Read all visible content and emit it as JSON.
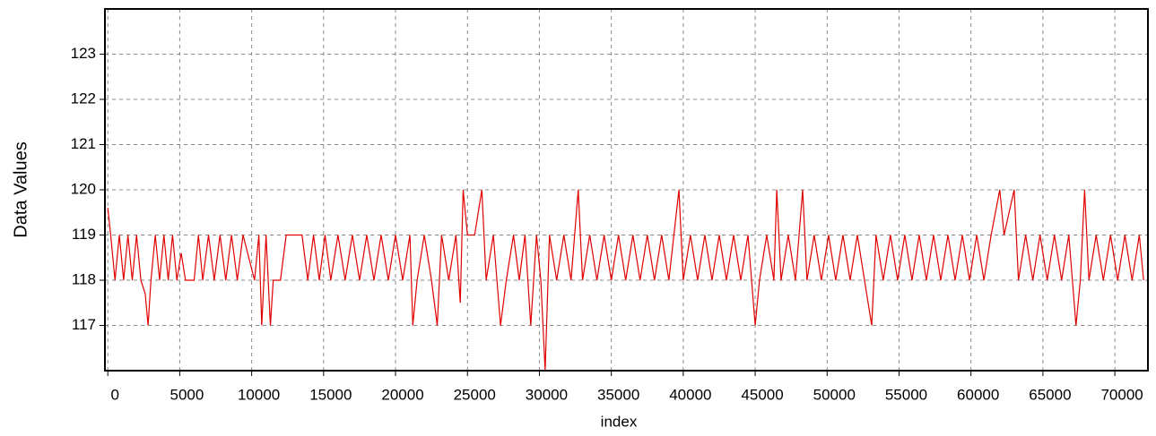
{
  "chart_data": {
    "type": "line",
    "xlabel": "index",
    "ylabel": "Data Values",
    "xlim": [
      -200,
      72300
    ],
    "ylim": [
      116,
      124
    ],
    "xticks": [
      0,
      5000,
      10000,
      15000,
      20000,
      25000,
      30000,
      35000,
      40000,
      45000,
      50000,
      55000,
      60000,
      65000,
      70000
    ],
    "yticks": [
      117,
      118,
      119,
      120,
      121,
      122,
      123
    ],
    "grid": true,
    "series": [
      {
        "color": "#e00000",
        "x": [
          0,
          200,
          500,
          800,
          1100,
          1400,
          1700,
          2000,
          2300,
          2600,
          2800,
          3000,
          3300,
          3600,
          3900,
          4200,
          4500,
          4800,
          5100,
          5400,
          6000,
          6300,
          6600,
          7000,
          7400,
          7800,
          8200,
          8600,
          9000,
          9400,
          9800,
          10200,
          10500,
          10700,
          11000,
          11300,
          11500,
          12000,
          12400,
          13500,
          13900,
          14300,
          14700,
          15100,
          15500,
          16000,
          16500,
          17000,
          17500,
          18000,
          18500,
          19000,
          19500,
          20000,
          20500,
          21000,
          21200,
          21500,
          22000,
          22500,
          22900,
          23200,
          23700,
          24200,
          24500,
          24700,
          25000,
          25500,
          26000,
          26300,
          26800,
          27300,
          27700,
          28200,
          28600,
          29000,
          29400,
          29800,
          30100,
          30400,
          30700,
          31200,
          31700,
          32200,
          32700,
          33000,
          33500,
          34000,
          34500,
          35000,
          35500,
          36000,
          36500,
          37000,
          37500,
          38000,
          38500,
          39000,
          39700,
          40000,
          40500,
          41000,
          41500,
          42000,
          42500,
          43000,
          43500,
          44000,
          44500,
          45000,
          45300,
          45800,
          46300,
          46500,
          46800,
          47300,
          47800,
          48300,
          48600,
          49100,
          49600,
          50100,
          50600,
          51100,
          51600,
          52100,
          52600,
          53100,
          53400,
          53900,
          54400,
          54900,
          55400,
          55900,
          56400,
          56900,
          57400,
          57900,
          58400,
          58900,
          59400,
          59900,
          60400,
          60900,
          61400,
          62000,
          62300,
          63000,
          63300,
          63800,
          64300,
          64800,
          65300,
          65800,
          66300,
          66800,
          67300,
          67600,
          67900,
          68200,
          68700,
          69200,
          69700,
          70200,
          70700,
          71200,
          71700,
          72000
        ],
        "values": [
          119.6,
          119,
          118,
          119,
          118,
          119,
          118,
          119,
          118,
          117.7,
          117,
          118,
          119,
          118,
          119,
          118,
          119,
          118,
          118.6,
          118,
          118,
          119,
          118,
          119,
          118,
          119,
          118,
          119,
          118,
          119,
          118.5,
          118,
          119,
          117,
          119,
          117,
          118,
          118,
          119,
          119,
          118,
          119,
          118,
          119,
          118,
          119,
          118,
          119,
          118,
          119,
          118,
          119,
          118,
          119,
          118,
          119,
          117,
          118,
          119,
          118,
          117,
          119,
          118,
          119,
          117.5,
          120,
          119,
          119,
          120,
          118,
          119,
          117,
          118,
          119,
          118,
          119,
          117,
          119,
          118,
          116,
          119,
          118,
          119,
          118,
          120,
          118,
          119,
          118,
          119,
          118,
          119,
          118,
          119,
          118,
          119,
          118,
          119,
          118,
          120,
          118,
          119,
          118,
          119,
          118,
          119,
          118,
          119,
          118,
          119,
          117,
          118,
          119,
          118,
          120,
          118,
          119,
          118,
          120,
          118,
          119,
          118,
          119,
          118,
          119,
          118,
          119,
          118,
          117,
          119,
          118,
          119,
          118,
          119,
          118,
          119,
          118,
          119,
          118,
          119,
          118,
          119,
          118,
          119,
          118,
          119,
          120,
          119,
          120,
          118,
          119,
          118,
          119,
          118,
          119,
          118,
          119,
          117,
          118,
          120,
          118,
          119,
          118,
          119,
          118,
          119,
          118,
          119,
          118
        ]
      }
    ]
  }
}
